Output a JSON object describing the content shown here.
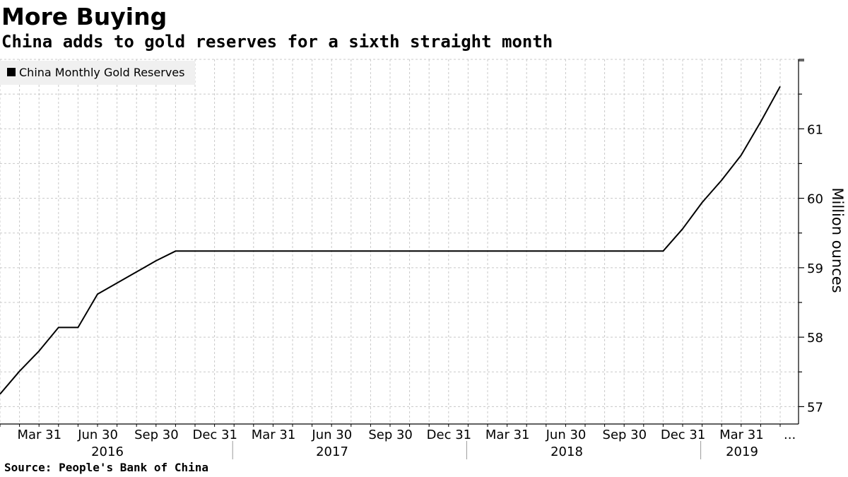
{
  "header": {
    "title": "More Buying",
    "subtitle": "China adds to gold reserves for a sixth straight month"
  },
  "footer": {
    "source": "Source: People's Bank of China"
  },
  "colors": {
    "line": "#000000",
    "grid": "#c8c8c8",
    "legend_bg": "#f0f0f0"
  },
  "chart_data": {
    "type": "line",
    "title": "More Buying",
    "subtitle": "China adds to gold reserves for a sixth straight month",
    "ylabel": "Million ounces",
    "xlabel": "",
    "ylim": [
      56.75,
      62.0
    ],
    "yticks": [
      57,
      58,
      59,
      60,
      61
    ],
    "grid": true,
    "legend_position": "top-left",
    "x_tick_labels": [
      "Mar 31",
      "Jun 30",
      "Sep 30",
      "Dec 31",
      "Mar 31",
      "Jun 30",
      "Sep 30",
      "Dec 31",
      "Mar 31",
      "Jun 30",
      "Sep 30",
      "Dec 31",
      "Mar 31",
      "..."
    ],
    "year_labels": [
      "2016",
      "2017",
      "2018",
      "2019"
    ],
    "series": [
      {
        "name": "China Monthly Gold Reserves",
        "x": [
          "2016-01",
          "2016-02",
          "2016-03",
          "2016-04",
          "2016-05",
          "2016-06",
          "2016-07",
          "2016-08",
          "2016-09",
          "2016-10",
          "2016-11",
          "2016-12",
          "2017-01",
          "2017-02",
          "2017-03",
          "2017-04",
          "2017-05",
          "2017-06",
          "2017-07",
          "2017-08",
          "2017-09",
          "2017-10",
          "2017-11",
          "2017-12",
          "2018-01",
          "2018-02",
          "2018-03",
          "2018-04",
          "2018-05",
          "2018-06",
          "2018-07",
          "2018-08",
          "2018-09",
          "2018-10",
          "2018-11",
          "2018-12",
          "2019-01",
          "2019-02",
          "2019-03",
          "2019-04",
          "2019-05"
        ],
        "values": [
          57.18,
          57.51,
          57.8,
          58.14,
          58.14,
          58.62,
          58.78,
          58.94,
          59.1,
          59.24,
          59.24,
          59.24,
          59.24,
          59.24,
          59.24,
          59.24,
          59.24,
          59.24,
          59.24,
          59.24,
          59.24,
          59.24,
          59.24,
          59.24,
          59.24,
          59.24,
          59.24,
          59.24,
          59.24,
          59.24,
          59.24,
          59.24,
          59.24,
          59.24,
          59.24,
          59.56,
          59.94,
          60.26,
          60.62,
          61.1,
          61.61
        ]
      }
    ]
  }
}
